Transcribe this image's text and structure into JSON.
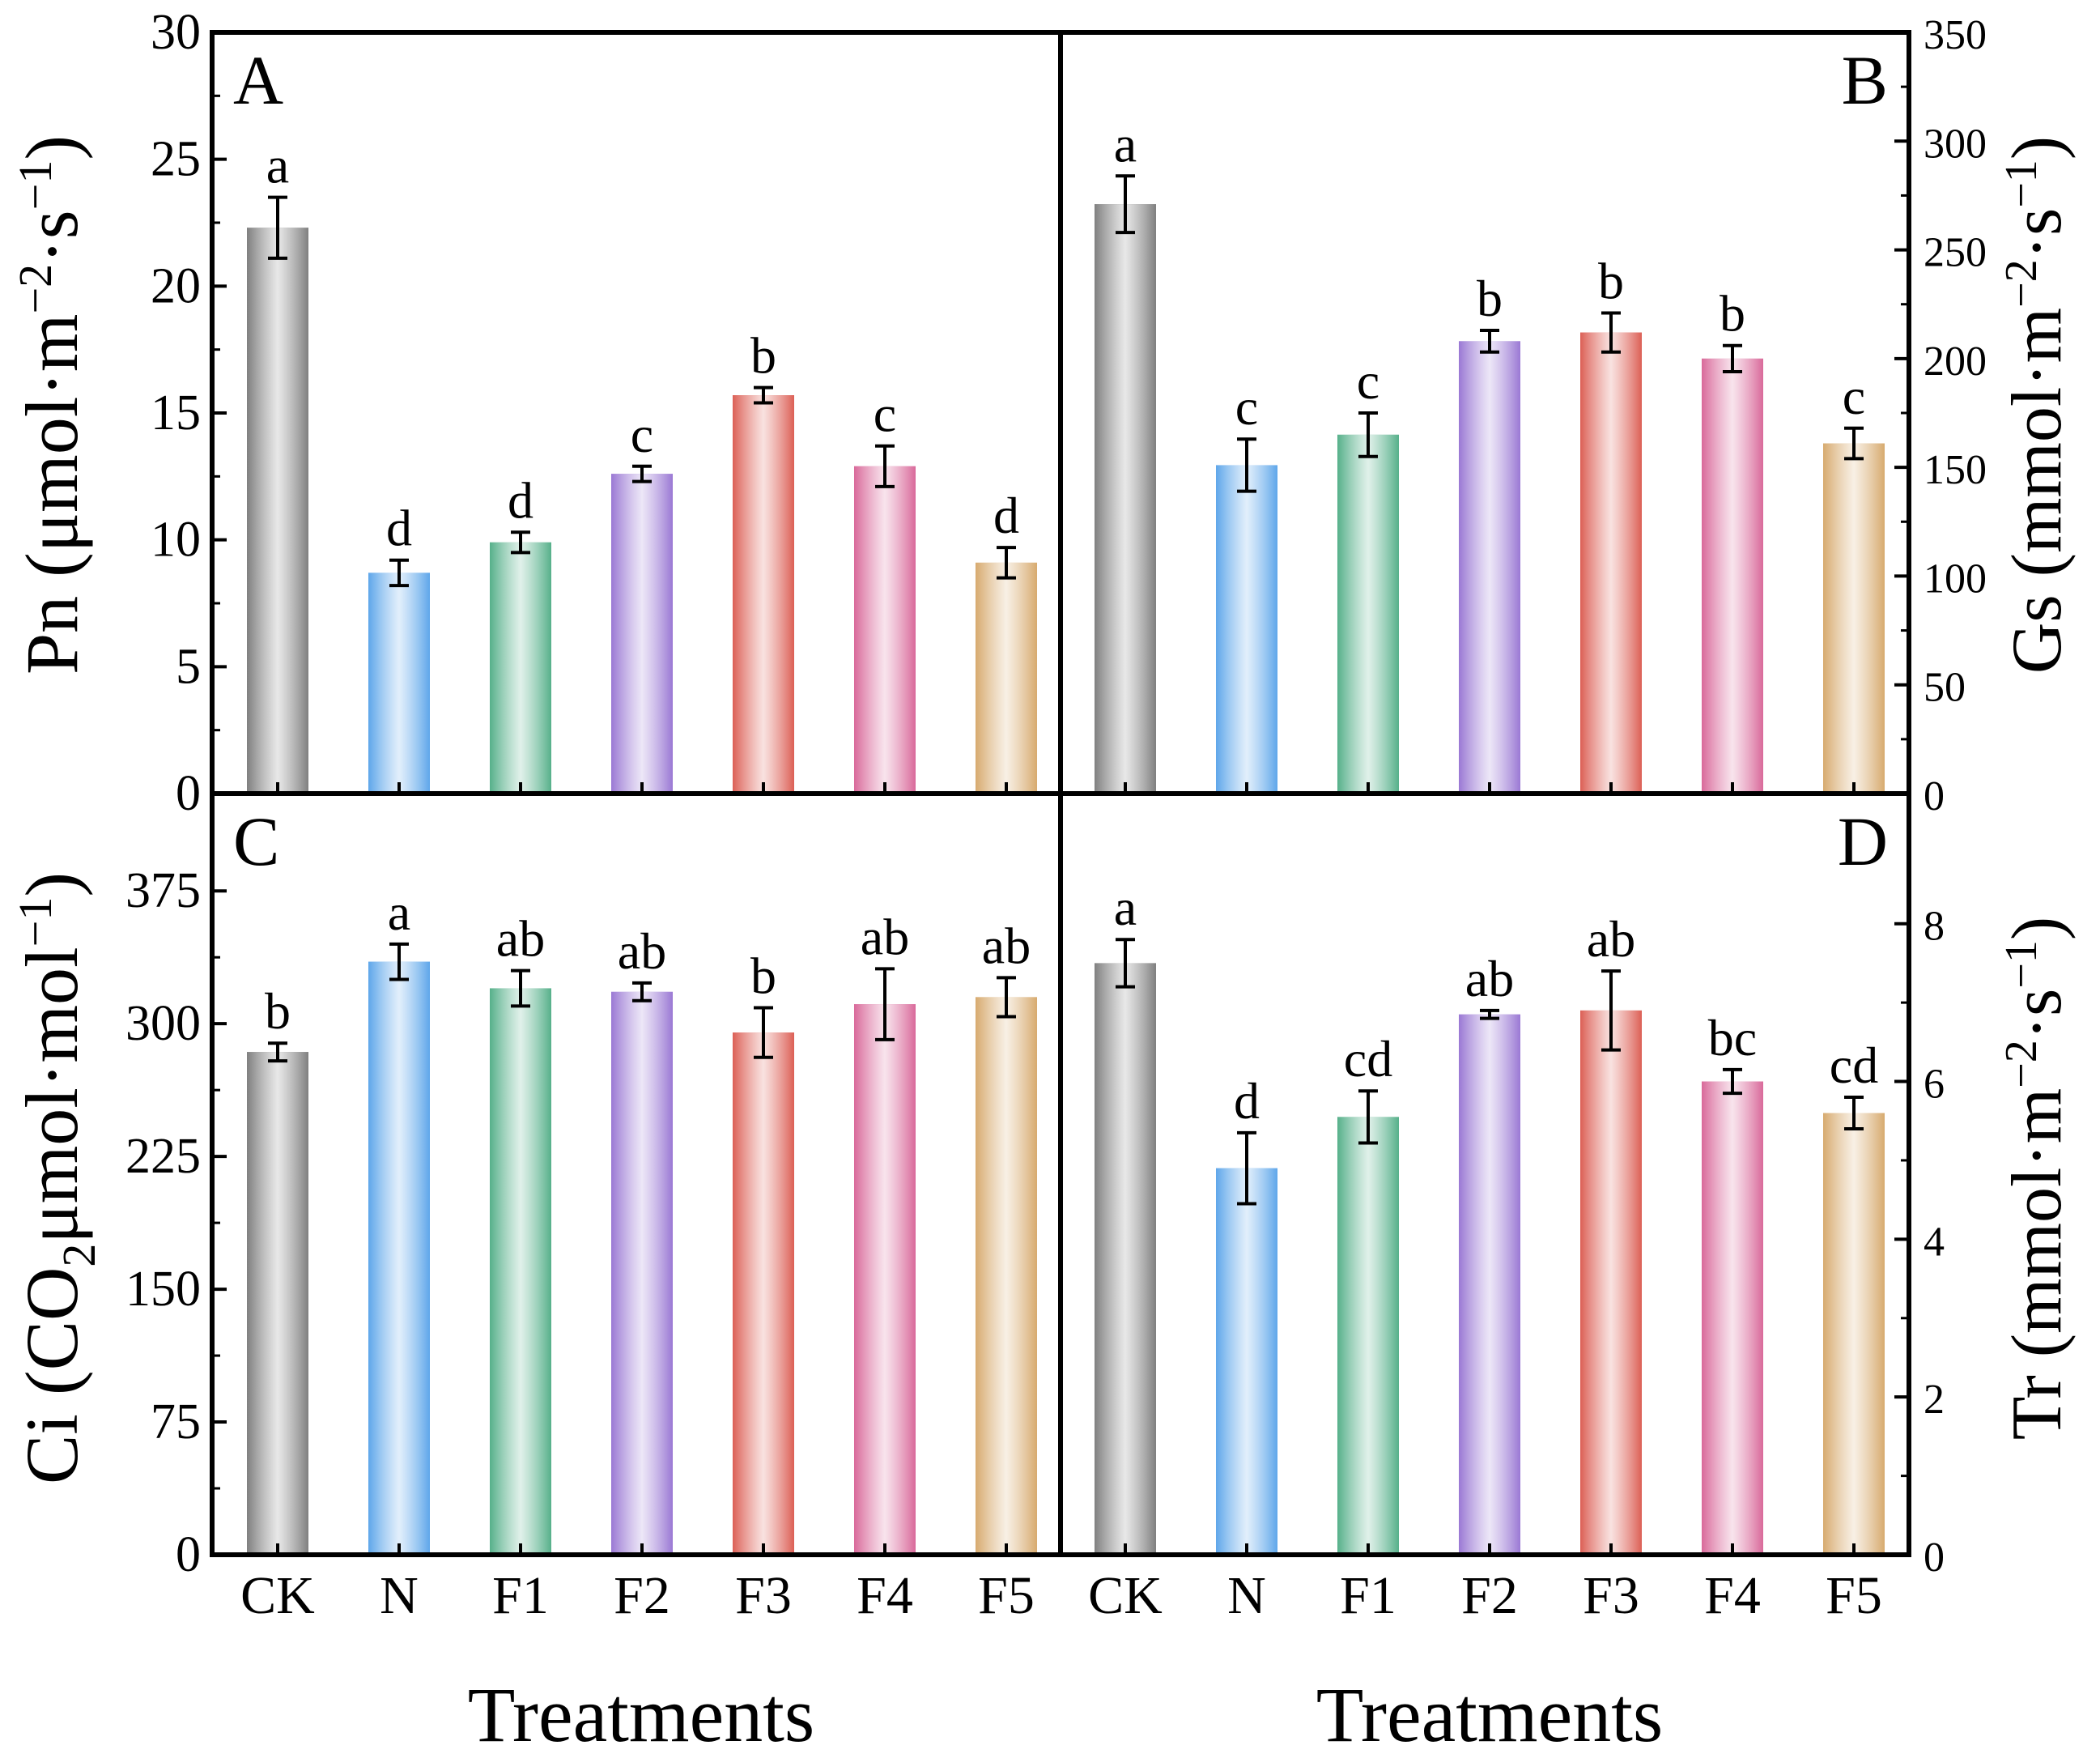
{
  "categories": [
    "CK",
    "N",
    "F1",
    "F2",
    "F3",
    "F4",
    "F5"
  ],
  "colors": [
    "#7f7f7f",
    "#5ea6ea",
    "#56b08a",
    "#9a78d4",
    "#dc5f55",
    "#d9699a",
    "#d7aa6e"
  ],
  "chart_data": [
    {
      "panel": "A",
      "type": "bar",
      "title": "",
      "xlabel": "Treatments",
      "ylabel": "Pn (μmol·m−2·s−1)",
      "ylabel_parts": {
        "pre": "Pn (μmol·m",
        "sup1": "−2",
        "mid": "·s",
        "sup2": "−1",
        "post": ")"
      },
      "ylim": [
        0,
        30
      ],
      "yticks": [
        "0",
        "5",
        "10",
        "15",
        "20",
        "25",
        "30"
      ],
      "values": [
        22.3,
        8.7,
        9.9,
        12.6,
        15.7,
        12.9,
        9.1
      ],
      "errors": [
        1.2,
        0.5,
        0.4,
        0.3,
        0.3,
        0.8,
        0.6
      ],
      "letters": [
        "a",
        "d",
        "d",
        "c",
        "b",
        "c",
        "d"
      ]
    },
    {
      "panel": "B",
      "type": "bar",
      "title": "",
      "xlabel": "Treatments",
      "ylabel": "Gs (mmol·m−2·s−1)",
      "ylabel_parts": {
        "pre": "Gs (mmol·m",
        "sup1": "−2",
        "mid": "·s",
        "sup2": "−1",
        "post": ")"
      },
      "ylim": [
        0,
        350
      ],
      "yticks": [
        "0",
        "50",
        "100",
        "150",
        "200",
        "250",
        "300",
        "350"
      ],
      "values": [
        271,
        151,
        165,
        208,
        212,
        200,
        161
      ],
      "errors": [
        13,
        12,
        10,
        5,
        9,
        6,
        7
      ],
      "letters": [
        "a",
        "c",
        "c",
        "b",
        "b",
        "b",
        "c"
      ]
    },
    {
      "panel": "C",
      "type": "bar",
      "title": "",
      "xlabel": "Treatments",
      "ylabel": "Ci (CO2μmol·mol−1)",
      "ylabel_parts": {
        "pre": "Ci (CO",
        "sub": "2",
        "mid": "μmol·mol",
        "sup": "−1",
        "post": ")"
      },
      "ylim": [
        0,
        430
      ],
      "yticks": [
        "0",
        "75",
        "150",
        "225",
        "300",
        "375"
      ],
      "values": [
        284,
        335,
        320,
        318,
        295,
        311,
        315
      ],
      "errors": [
        5,
        10,
        10,
        5,
        14,
        20,
        11
      ],
      "letters": [
        "b",
        "a",
        "ab",
        "ab",
        "b",
        "ab",
        "ab"
      ]
    },
    {
      "panel": "D",
      "type": "bar",
      "title": "",
      "xlabel": "Treatments",
      "ylabel": "Tr (mmol·m−2·s−1)",
      "ylabel_parts": {
        "pre": "Tr (mmol·m",
        "sup1": "−2",
        "mid": "·s",
        "sup2": "−1",
        "post": ")"
      },
      "ylim": [
        0,
        9.65
      ],
      "yticks": [
        "0",
        "2",
        "4",
        "6",
        "8"
      ],
      "values": [
        7.5,
        4.9,
        5.55,
        6.85,
        6.9,
        6.0,
        5.6
      ],
      "errors": [
        0.3,
        0.45,
        0.33,
        0.05,
        0.5,
        0.15,
        0.2
      ],
      "letters": [
        "a",
        "d",
        "cd",
        "ab",
        "ab",
        "bc",
        "cd"
      ]
    }
  ]
}
